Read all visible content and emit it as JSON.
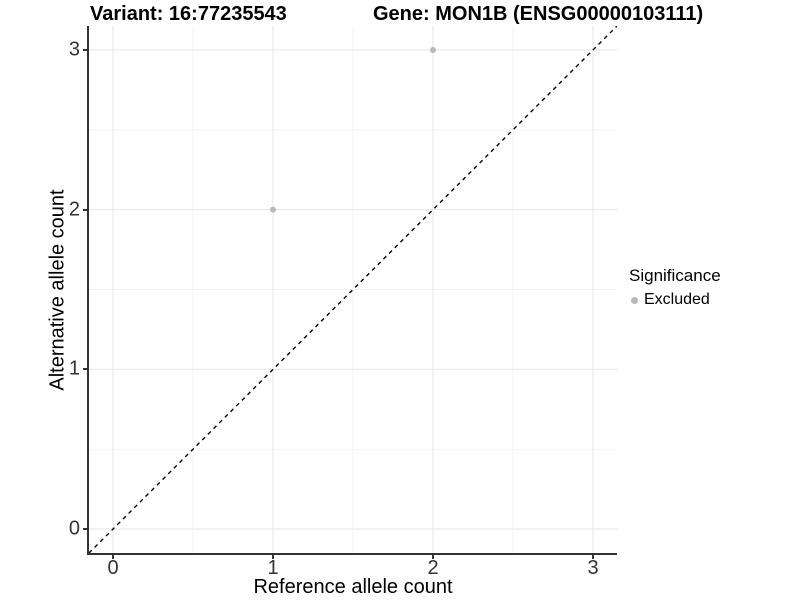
{
  "figure": {
    "background": "#ffffff"
  },
  "chart_data": {
    "type": "scatter",
    "titles": {
      "left": "Variant: 16:77235543",
      "right": "Gene: MON1B (ENSG00000103111)"
    },
    "xlabel": "Reference allele count",
    "ylabel": "Alternative allele count",
    "xlim": [
      -0.15,
      3.15
    ],
    "ylim": [
      -0.15,
      3.15
    ],
    "x_ticks": [
      0,
      1,
      2,
      3
    ],
    "y_ticks": [
      0,
      1,
      2,
      3
    ],
    "grid": {
      "show": true,
      "major": [
        0,
        1,
        2,
        3
      ],
      "minor": [
        0.5,
        1.5,
        2.5
      ],
      "major_color": "#e6e6e6",
      "minor_color": "#f3f3f3"
    },
    "identity_line": {
      "equation": "y = x",
      "style": "dashed",
      "color": "#000000"
    },
    "series": [
      {
        "name": "Excluded",
        "color": "#b8b8b8",
        "points": [
          {
            "x": 1,
            "y": 2
          },
          {
            "x": 2,
            "y": 3
          }
        ]
      }
    ],
    "legend": {
      "title": "Significance",
      "position": "right",
      "items": [
        {
          "label": "Excluded",
          "color": "#b8b8b8"
        }
      ]
    }
  }
}
